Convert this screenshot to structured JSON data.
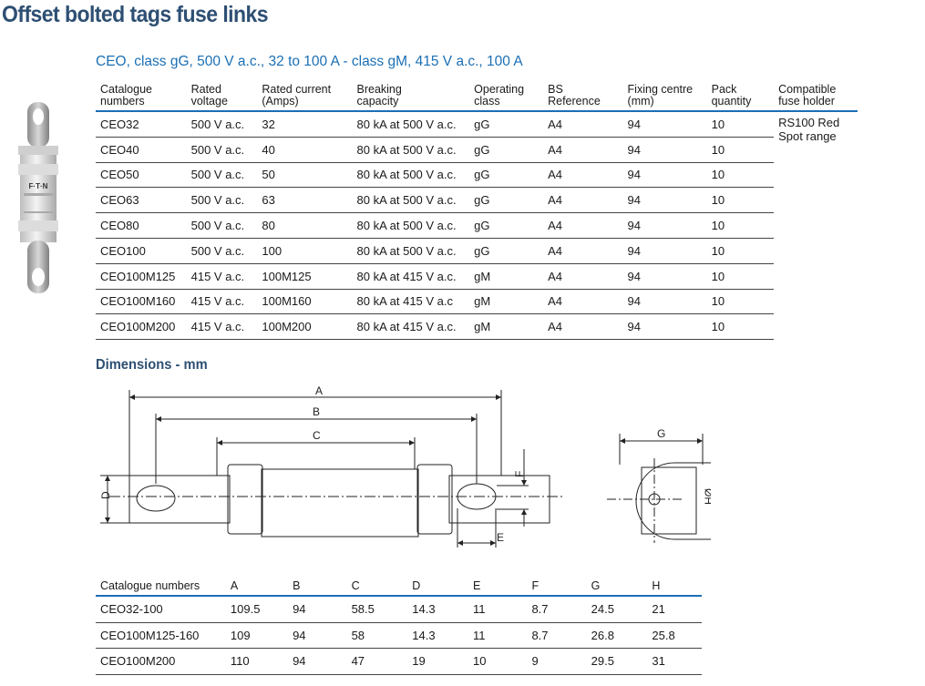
{
  "title": "Offset bolted tags fuse links",
  "subtitle": "CEO, class gG, 500 V a.c., 32 to 100 A - class gM, 415 V a.c., 100 A",
  "fuse_photo": {
    "brand": "F·T·N"
  },
  "spec_table": {
    "headers": [
      {
        "line1": "Catalogue",
        "line2": "numbers"
      },
      {
        "line1": "Rated",
        "line2": "voltage"
      },
      {
        "line1": "Rated current",
        "line2": "(Amps)"
      },
      {
        "line1": "Breaking",
        "line2": "capacity"
      },
      {
        "line1": "Operating",
        "line2": "class"
      },
      {
        "line1": "BS",
        "line2": "Reference"
      },
      {
        "line1": "Fixing centre",
        "line2": "(mm)"
      },
      {
        "line1": "Pack",
        "line2": "quantity"
      },
      {
        "line1": "Compatible",
        "line2": "fuse holder"
      }
    ],
    "holder": {
      "line1": "RS100 Red",
      "line2": "Spot range"
    },
    "rows": [
      [
        "CEO32",
        "500 V a.c.",
        "32",
        "80 kA at 500 V a.c.",
        "gG",
        "A4",
        "94",
        "10"
      ],
      [
        "CEO40",
        "500 V a.c.",
        "40",
        "80 kA at 500 V a.c.",
        "gG",
        "A4",
        "94",
        "10"
      ],
      [
        "CEO50",
        "500 V a.c.",
        "50",
        "80 kA at 500 V a.c.",
        "gG",
        "A4",
        "94",
        "10"
      ],
      [
        "CEO63",
        "500 V a.c.",
        "63",
        "80 kA at 500 V a.c.",
        "gG",
        "A4",
        "94",
        "10"
      ],
      [
        "CEO80",
        "500 V a.c.",
        "80",
        "80 kA at 500 V a.c.",
        "gG",
        "A4",
        "94",
        "10"
      ],
      [
        "CEO100",
        "500 V a.c.",
        "100",
        "80 kA at 500 V a.c.",
        "gG",
        "A4",
        "94",
        "10"
      ],
      [
        "CEO100M125",
        "415 V a.c.",
        "100M125",
        "80 kA at 415 V a.c.",
        "gM",
        "A4",
        "94",
        "10"
      ],
      [
        "CEO100M160",
        "415 V a.c.",
        "100M160",
        "80 kA at 415 V a.c",
        "gM",
        "A4",
        "94",
        "10"
      ],
      [
        "CEO100M200",
        "415 V a.c.",
        "100M200",
        "80 kA at 415 V a.c.",
        "gM",
        "A4",
        "94",
        "10"
      ]
    ]
  },
  "dimensions_title": "Dimensions - mm",
  "diagram_labels": {
    "A": "A",
    "B": "B",
    "C": "C",
    "D": "D",
    "E": "E",
    "F": "F",
    "G": "G",
    "H": "HØ"
  },
  "dims_table": {
    "headers": [
      "Catalogue numbers",
      "A",
      "B",
      "C",
      "D",
      "E",
      "F",
      "G",
      "H"
    ],
    "rows": [
      [
        "CEO32-100",
        "109.5",
        "94",
        "58.5",
        "14.3",
        "11",
        "8.7",
        "24.5",
        "21"
      ],
      [
        "CEO100M125-160",
        "109",
        "94",
        "58",
        "14.3",
        "11",
        "8.7",
        "26.8",
        "25.8"
      ],
      [
        "CEO100M200",
        "110",
        "94",
        "47",
        "19",
        "10",
        "9",
        "29.5",
        "31"
      ]
    ]
  }
}
